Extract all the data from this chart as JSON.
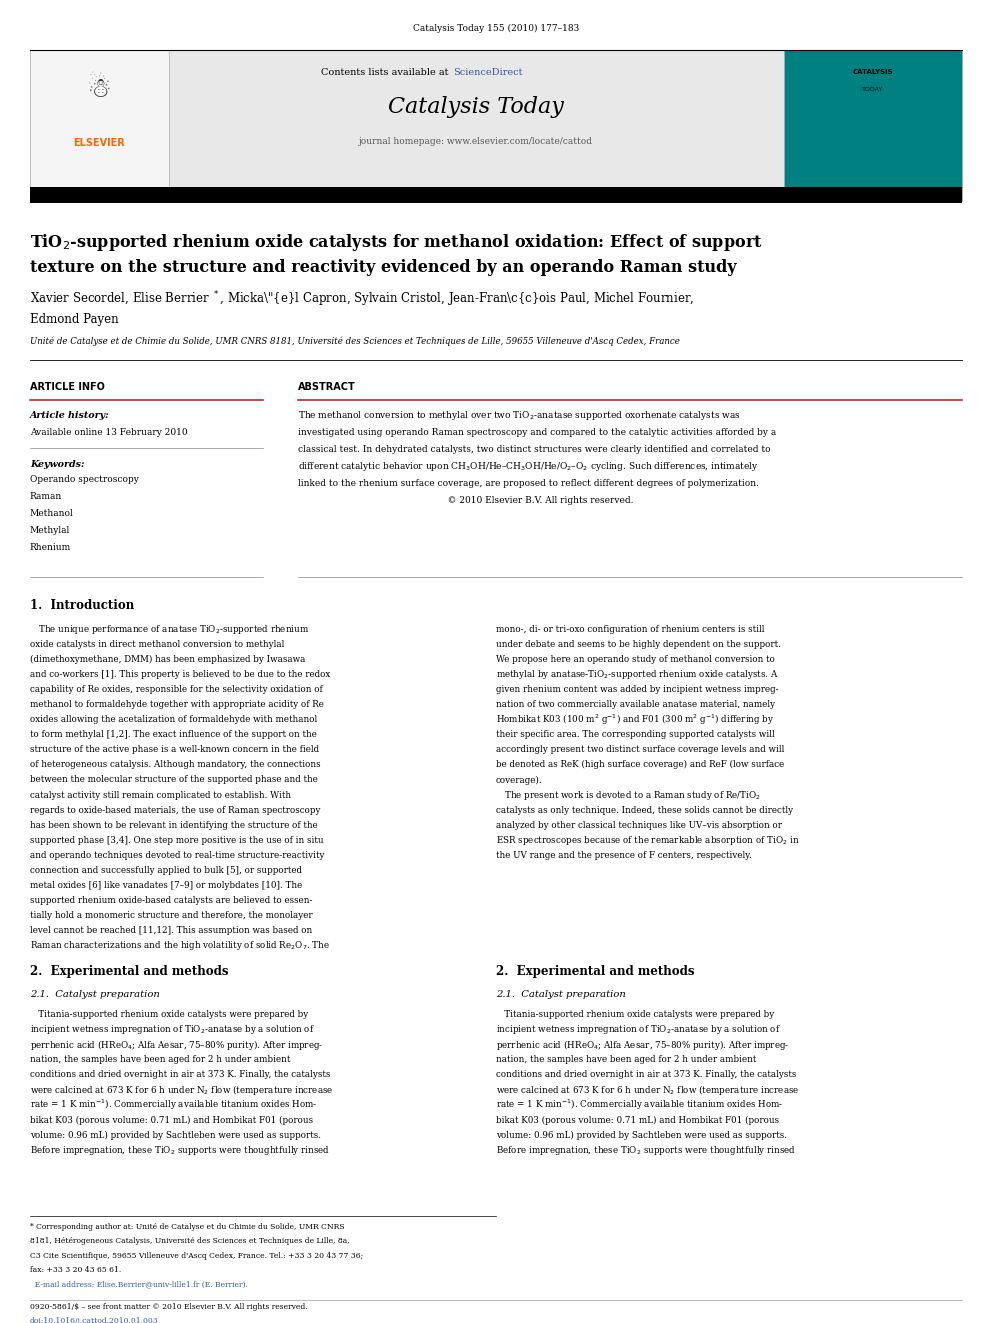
{
  "page_width": 9.92,
  "page_height": 13.23,
  "background_color": "#ffffff",
  "header_journal_ref": "Catalysis Today 155 (2010) 177–183",
  "banner_bg_color": "#e8e8e8",
  "banner_journal_name": "Catalysis Today",
  "banner_homepage": "journal homepage: www.elsevier.com/locate/cattod",
  "sciencedirect_color": "#3355aa",
  "elsevier_color": "#ff6600",
  "teal_cover_color": "#008080",
  "keywords": [
    "Operando spectroscopy",
    "Raman",
    "Methanol",
    "Methylal",
    "Rhenium"
  ],
  "abstract_lines": [
    "The methanol conversion to methylal over two TiO$_2$-anatase supported oxorhenate catalysts was",
    "investigated using operando Raman spectroscopy and compared to the catalytic activities afforded by a",
    "classical test. In dehydrated catalysts, two distinct structures were clearly identified and correlated to",
    "different catalytic behavior upon CH$_3$OH/He–CH$_3$OH/He/O$_2$–O$_2$ cycling. Such differences, intimately",
    "linked to the rhenium surface coverage, are proposed to reflect different degrees of polymerization.",
    "                                                    © 2010 Elsevier B.V. All rights reserved."
  ],
  "intro_left": [
    "   The unique performance of anatase TiO$_2$-supported rhenium",
    "oxide catalysts in direct methanol conversion to methylal",
    "(dimethoxymethane, DMM) has been emphasized by Iwasawa",
    "and co-workers [1]. This property is believed to be due to the redox",
    "capability of Re oxides, responsible for the selectivity oxidation of",
    "methanol to formaldehyde together with appropriate acidity of Re",
    "oxides allowing the acetalization of formaldehyde with methanol",
    "to form methylal [1,2]. The exact influence of the support on the",
    "structure of the active phase is a well-known concern in the field",
    "of heterogeneous catalysis. Although mandatory, the connections",
    "between the molecular structure of the supported phase and the",
    "catalyst activity still remain complicated to establish. With",
    "regards to oxide-based materials, the use of Raman spectroscopy",
    "has been shown to be relevant in identifying the structure of the",
    "supported phase [3,4]. One step more positive is the use of in situ",
    "and operando techniques devoted to real-time structure-reactivity",
    "connection and successfully applied to bulk [5], or supported",
    "metal oxides [6] like vanadates [7–9] or molybdates [10]. The",
    "supported rhenium oxide-based catalysts are believed to essen-",
    "tially hold a monomeric structure and therefore, the monolayer",
    "level cannot be reached [11,12]. This assumption was based on",
    "Raman characterizations and the high volatility of solid Re$_2$O$_7$. The"
  ],
  "intro_right": [
    "mono-, di- or tri-oxo configuration of rhenium centers is still",
    "under debate and seems to be highly dependent on the support.",
    "We propose here an operando study of methanol conversion to",
    "methylal by anatase-TiO$_2$-supported rhenium oxide catalysts. A",
    "given rhenium content was added by incipient wetness impreg-",
    "nation of two commercially available anatase material, namely",
    "Hombikat K03 (100 m$^2$ g$^{-1}$) and F01 (300 m$^2$ g$^{-1}$) differing by",
    "their specific area. The corresponding supported catalysts will",
    "accordingly present two distinct surface coverage levels and will",
    "be denoted as ReK (high surface coverage) and ReF (low surface",
    "coverage).",
    "   The present work is devoted to a Raman study of Re/TiO$_2$",
    "catalysts as only technique. Indeed, these solids cannot be directly",
    "analyzed by other classical techniques like UV–vis absorption or",
    "ESR spectroscopes because of the remarkable absorption of TiO$_2$ in",
    "the UV range and the presence of F centers, respectively."
  ],
  "sec21_left": [
    "   Titania-supported rhenium oxide catalysts were prepared by",
    "incipient wetness impregnation of TiO$_2$-anatase by a solution of",
    "perrhenic acid (HReO$_4$; Alfa Aesar, 75–80% purity). After impreg-",
    "nation, the samples have been aged for 2 h under ambient",
    "conditions and dried overnight in air at 373 K. Finally, the catalysts",
    "were calcined at 673 K for 6 h under N$_2$ flow (temperature increase",
    "rate = 1 K min$^{-1}$). Commercially available titanium oxides Hom-",
    "bikat K03 (porous volume: 0.71 mL) and Hombikat F01 (porous",
    "volume: 0.96 mL) provided by Sachtleben were used as supports.",
    "Before impregnation, these TiO$_2$ supports were thoughtfully rinsed"
  ],
  "sec21_right": [
    "   Titania-supported rhenium oxide catalysts were prepared by",
    "incipient wetness impregnation of TiO$_2$-anatase by a solution of",
    "perrhenic acid (HReO$_4$; Alfa Aesar, 75–80% purity). After impreg-",
    "nation, the samples have been aged for 2 h under ambient",
    "conditions and dried overnight in air at 373 K. Finally, the catalysts",
    "were calcined at 673 K for 6 h under N$_2$ flow (temperature increase",
    "rate = 1 K min$^{-1}$). Commercially available titanium oxides Hom-",
    "bikat K03 (porous volume: 0.71 mL) and Hombikat F01 (porous",
    "volume: 0.96 mL) provided by Sachtleben were used as supports.",
    "Before impregnation, these TiO$_2$ supports were thoughtfully rinsed"
  ],
  "footnote_lines": [
    "* Corresponding author at: Unité de Catalyse et du Chimie du Solide, UMR CNRS",
    "8181, Hétérogeneous Catalysis, Université des Sciences et Techniques de Lille, 8a,",
    "C3 Cite Scientifique, 59655 Villeneuve d'Ascq Cedex, France. Tel.: +33 3 20 43 77 36;",
    "fax: +33 3 20 43 65 61."
  ],
  "email_line": "  E-mail address: Elise.Berrier@univ-lille1.fr (E. Berrier).",
  "footer_line1": "0920-5861/$ – see front matter © 2010 Elsevier B.V. All rights reserved.",
  "footer_line2": "doi:10.1016/j.cattod.2010.01.003"
}
